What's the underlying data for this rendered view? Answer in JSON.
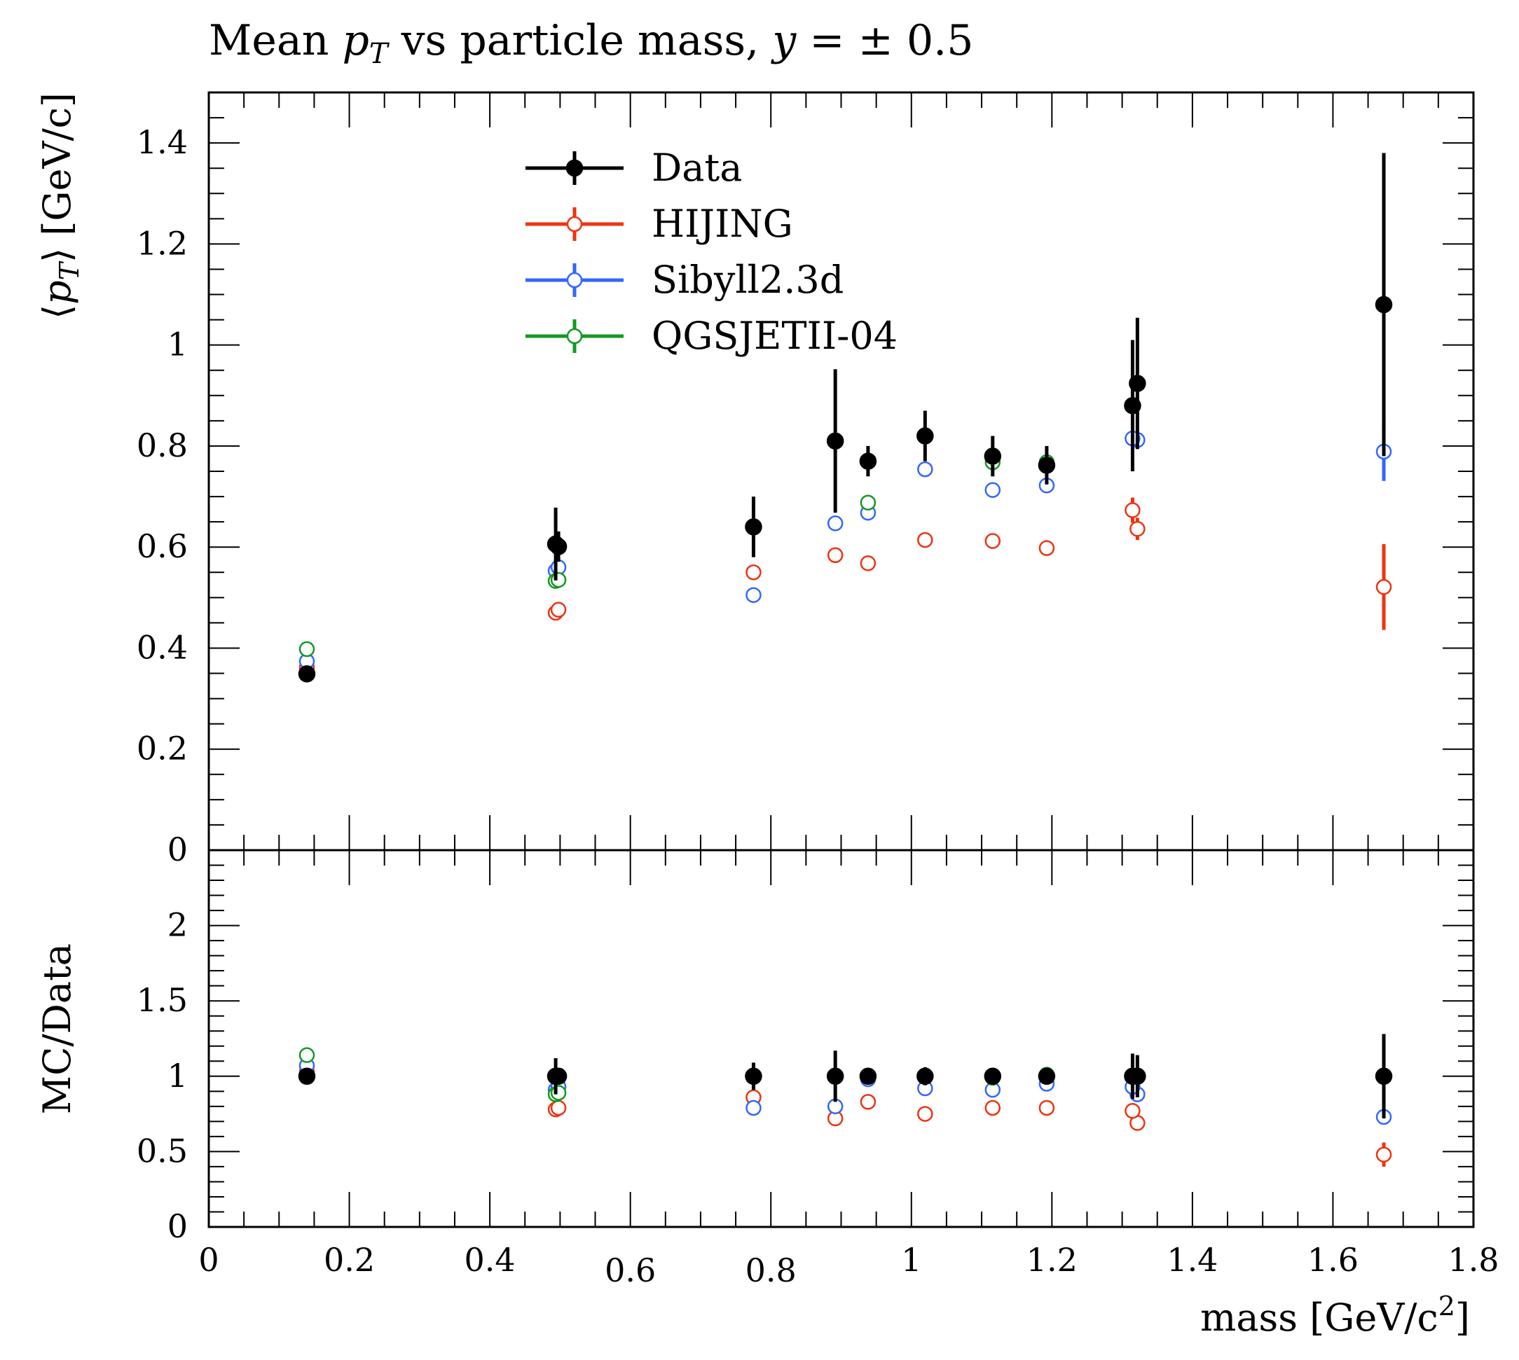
{
  "chart_data": {
    "type": "scatter",
    "title": {
      "prefix": "Mean ",
      "var1": "p",
      "sub": "T",
      "middle": " vs particle mass, ",
      "var2": "y",
      "suffix": " = ± 0.5"
    },
    "xlabel": {
      "text": "mass [GeV/c",
      "sup": "2",
      "close": "]"
    },
    "ylabel_main": {
      "open": "⟨",
      "var": "p",
      "sub": "T",
      "close": "⟩ [GeV/c]"
    },
    "ylabel_ratio": "MC/Data",
    "xlim": [
      0,
      1.8
    ],
    "ylim_main": [
      0,
      1.5
    ],
    "ylim_ratio": [
      0,
      2.5
    ],
    "x_ticks": [
      {
        "value": 0,
        "label": "0"
      },
      {
        "value": 0.2,
        "label": "0.2"
      },
      {
        "value": 0.4,
        "label": "0.4"
      },
      {
        "value": 0.6,
        "label": "0.6"
      },
      {
        "value": 0.8,
        "label": "0.8"
      },
      {
        "value": 1.0,
        "label": "1"
      },
      {
        "value": 1.2,
        "label": "1.2"
      },
      {
        "value": 1.4,
        "label": "1.4"
      },
      {
        "value": 1.6,
        "label": "1.6"
      },
      {
        "value": 1.8,
        "label": "1.8"
      }
    ],
    "y_ticks_main": [
      {
        "value": 0,
        "label": "0"
      },
      {
        "value": 0.2,
        "label": "0.2"
      },
      {
        "value": 0.4,
        "label": "0.4"
      },
      {
        "value": 0.6,
        "label": "0.6"
      },
      {
        "value": 0.8,
        "label": "0.8"
      },
      {
        "value": 1.0,
        "label": "1"
      },
      {
        "value": 1.2,
        "label": "1.2"
      },
      {
        "value": 1.4,
        "label": "1.4"
      }
    ],
    "y_ticks_ratio": [
      {
        "value": 0,
        "label": "0"
      },
      {
        "value": 0.5,
        "label": "0.5"
      },
      {
        "value": 1.0,
        "label": "1"
      },
      {
        "value": 1.5,
        "label": "1.5"
      },
      {
        "value": 2.0,
        "label": "2"
      }
    ],
    "legend_position": "top-center",
    "series": [
      {
        "name": "Data",
        "color": "#000000",
        "marker": "filled",
        "x": [
          0.1396,
          0.4937,
          0.4977,
          0.7753,
          0.8917,
          0.9383,
          1.0195,
          1.1157,
          1.1926,
          1.3217,
          1.3148,
          1.6724
        ],
        "y": [
          0.349,
          0.606,
          0.601,
          0.64,
          0.81,
          0.77,
          0.82,
          0.78,
          0.762,
          0.924,
          0.88,
          1.08
        ],
        "err": [
          0.006,
          0.072,
          0.03,
          0.06,
          0.142,
          0.03,
          0.05,
          0.04,
          0.038,
          0.13,
          0.13,
          0.3
        ],
        "ratio": [
          1,
          1,
          1,
          1,
          1,
          1,
          1,
          1,
          1,
          1,
          1,
          1
        ],
        "ratio_err": [
          0.02,
          0.12,
          0.05,
          0.09,
          0.17,
          0.04,
          0.06,
          0.05,
          0.05,
          0.14,
          0.15,
          0.28
        ]
      },
      {
        "name": "HIJING",
        "color": "#ee3311",
        "marker": "open",
        "x": [
          0.1396,
          0.4937,
          0.4977,
          0.7753,
          0.8917,
          0.9383,
          1.0195,
          1.1157,
          1.1926,
          1.3217,
          1.3148,
          1.6724
        ],
        "y": [
          0.362,
          0.47,
          0.476,
          0.55,
          0.584,
          0.568,
          0.614,
          0.612,
          0.598,
          0.636,
          0.673,
          0.521
        ],
        "err": [
          0,
          0,
          0,
          0,
          0,
          0,
          0,
          0,
          0,
          0.022,
          0.025,
          0.085
        ],
        "ratio": [
          1.03,
          0.78,
          0.79,
          0.86,
          0.72,
          0.83,
          0.75,
          0.79,
          0.79,
          0.69,
          0.77,
          0.48
        ],
        "ratio_err": [
          0,
          0,
          0,
          0,
          0,
          0,
          0,
          0,
          0,
          0.03,
          0.03,
          0.08
        ]
      },
      {
        "name": "Sibyll2.3d",
        "color": "#3366ff",
        "marker": "open",
        "x": [
          0.1396,
          0.4937,
          0.4977,
          0.7753,
          0.8917,
          0.9383,
          1.0195,
          1.1157,
          1.1926,
          1.3217,
          1.3148,
          1.6724
        ],
        "y": [
          0.374,
          0.553,
          0.56,
          0.505,
          0.647,
          0.668,
          0.754,
          0.713,
          0.722,
          0.812,
          0.815,
          0.789
        ],
        "err": [
          0,
          0,
          0,
          0,
          0,
          0,
          0,
          0,
          0,
          0,
          0,
          0.058
        ],
        "ratio": [
          1.07,
          0.91,
          0.93,
          0.79,
          0.8,
          0.98,
          0.92,
          0.91,
          0.95,
          0.88,
          0.93,
          0.73
        ],
        "ratio_err": [
          0,
          0,
          0,
          0,
          0,
          0,
          0,
          0,
          0,
          0,
          0,
          0.05
        ]
      },
      {
        "name": "QGSJETII-04",
        "color": "#119922",
        "marker": "open",
        "x": [
          0.1396,
          0.4937,
          0.4977,
          0.9383,
          1.1157,
          1.1926
        ],
        "y": [
          0.398,
          0.533,
          0.535,
          0.688,
          0.768,
          0.768
        ],
        "err": [
          0,
          0,
          0,
          0,
          0,
          0
        ],
        "ratio": [
          1.14,
          0.88,
          0.89,
          1.0,
          0.99,
          1.01
        ],
        "ratio_err": [
          0,
          0,
          0,
          0,
          0,
          0
        ]
      }
    ]
  }
}
